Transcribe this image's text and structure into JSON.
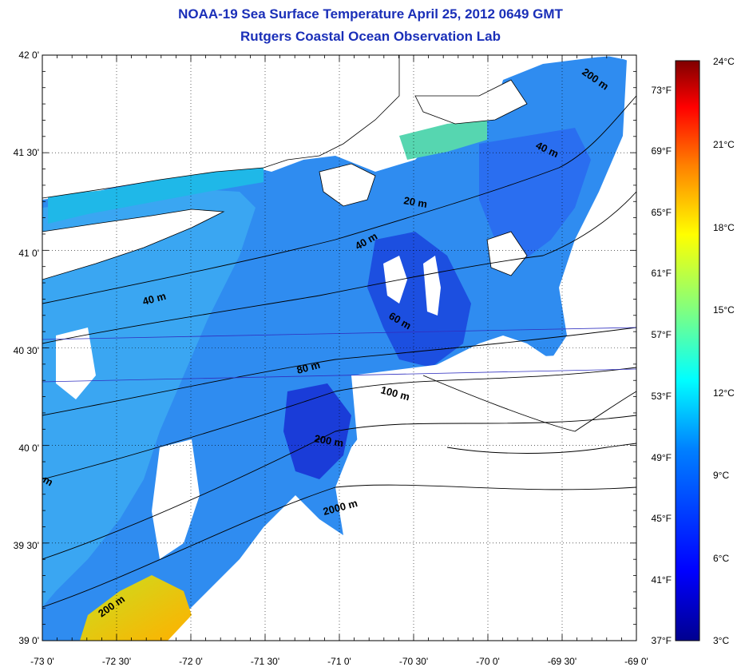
{
  "title": "NOAA-19 Sea Surface Temperature April 25, 2012 0649 GMT",
  "subtitle": "Rutgers Coastal Ocean Observation Lab",
  "map": {
    "lon_ticks": [
      "-73 0'",
      "-72 30'",
      "-72 0'",
      "-71 30'",
      "-71 0'",
      "-70 30'",
      "-70 0'",
      "-69 30'",
      "-69 0'"
    ],
    "lat_ticks": [
      "42 0'",
      "41 30'",
      "41 0'",
      "40 30'",
      "40 0'",
      "39 30'",
      "39 0'"
    ],
    "f_ticks": [
      "73°F",
      "69°F",
      "65°F",
      "61°F",
      "57°F",
      "53°F",
      "49°F",
      "45°F",
      "41°F",
      "37°F"
    ],
    "depth_labels": [
      "200 m",
      "40 m",
      "20 m",
      "40 m",
      "40 m",
      "60 m",
      "80 m",
      "100 m",
      "200 m",
      "2000 m",
      "200 m",
      "m"
    ],
    "lon_range": [
      -73,
      -69
    ],
    "lat_range": [
      39,
      42
    ]
  },
  "colorbar": {
    "labels": [
      "24°C",
      "21°C",
      "18°C",
      "15°C",
      "12°C",
      "9°C",
      "6°C",
      "3°C"
    ],
    "range_c": [
      3,
      24
    ],
    "colors": [
      "#7f0000",
      "#ff0000",
      "#ff8000",
      "#ffff00",
      "#80ff80",
      "#00ffff",
      "#0080ff",
      "#0000ff",
      "#00008f"
    ]
  }
}
